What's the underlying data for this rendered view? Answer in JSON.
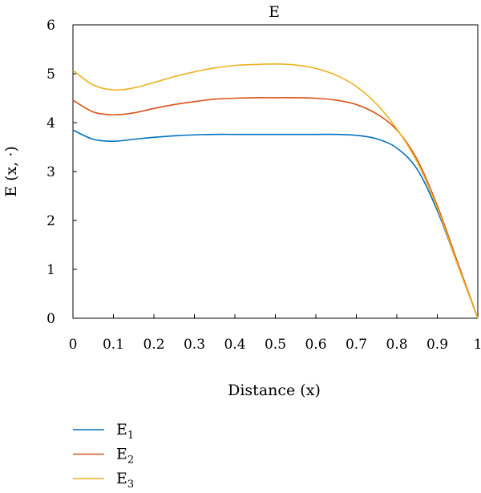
{
  "chart_data": {
    "type": "line",
    "title": "E",
    "xlabel": "Distance (x)",
    "ylabel": "E (x, ·)",
    "xlim": [
      0,
      1
    ],
    "ylim": [
      0,
      6
    ],
    "xticks": [
      "0",
      "0.1",
      "0.2",
      "0.3",
      "0.4",
      "0.5",
      "0.6",
      "0.7",
      "0.8",
      "0.9",
      "1"
    ],
    "yticks": [
      "0",
      "1",
      "2",
      "3",
      "4",
      "5",
      "6"
    ],
    "grid": false,
    "legend_position": "bottom-left",
    "x": [
      0,
      0.05,
      0.1,
      0.15,
      0.2,
      0.25,
      0.3,
      0.35,
      0.4,
      0.45,
      0.5,
      0.55,
      0.6,
      0.65,
      0.7,
      0.75,
      0.8,
      0.85,
      0.9,
      0.95,
      1
    ],
    "series": [
      {
        "name": "E1",
        "base": "E",
        "sub": "1",
        "color": "#0072BD",
        "values": [
          3.85,
          3.66,
          3.62,
          3.66,
          3.7,
          3.73,
          3.75,
          3.76,
          3.76,
          3.76,
          3.76,
          3.76,
          3.76,
          3.76,
          3.74,
          3.67,
          3.48,
          3.05,
          2.2,
          1.1,
          0.0
        ]
      },
      {
        "name": "E2",
        "base": "E",
        "sub": "2",
        "color": "#D95319",
        "values": [
          4.46,
          4.22,
          4.16,
          4.2,
          4.29,
          4.37,
          4.43,
          4.48,
          4.5,
          4.51,
          4.51,
          4.51,
          4.5,
          4.46,
          4.37,
          4.18,
          3.85,
          3.25,
          2.3,
          1.15,
          0.0
        ]
      },
      {
        "name": "E3",
        "base": "E",
        "sub": "3",
        "color": "#EDB120",
        "values": [
          5.07,
          4.77,
          4.67,
          4.71,
          4.82,
          4.94,
          5.04,
          5.12,
          5.17,
          5.19,
          5.2,
          5.18,
          5.11,
          4.97,
          4.74,
          4.38,
          3.87,
          3.2,
          2.25,
          1.1,
          0.0
        ]
      }
    ]
  }
}
